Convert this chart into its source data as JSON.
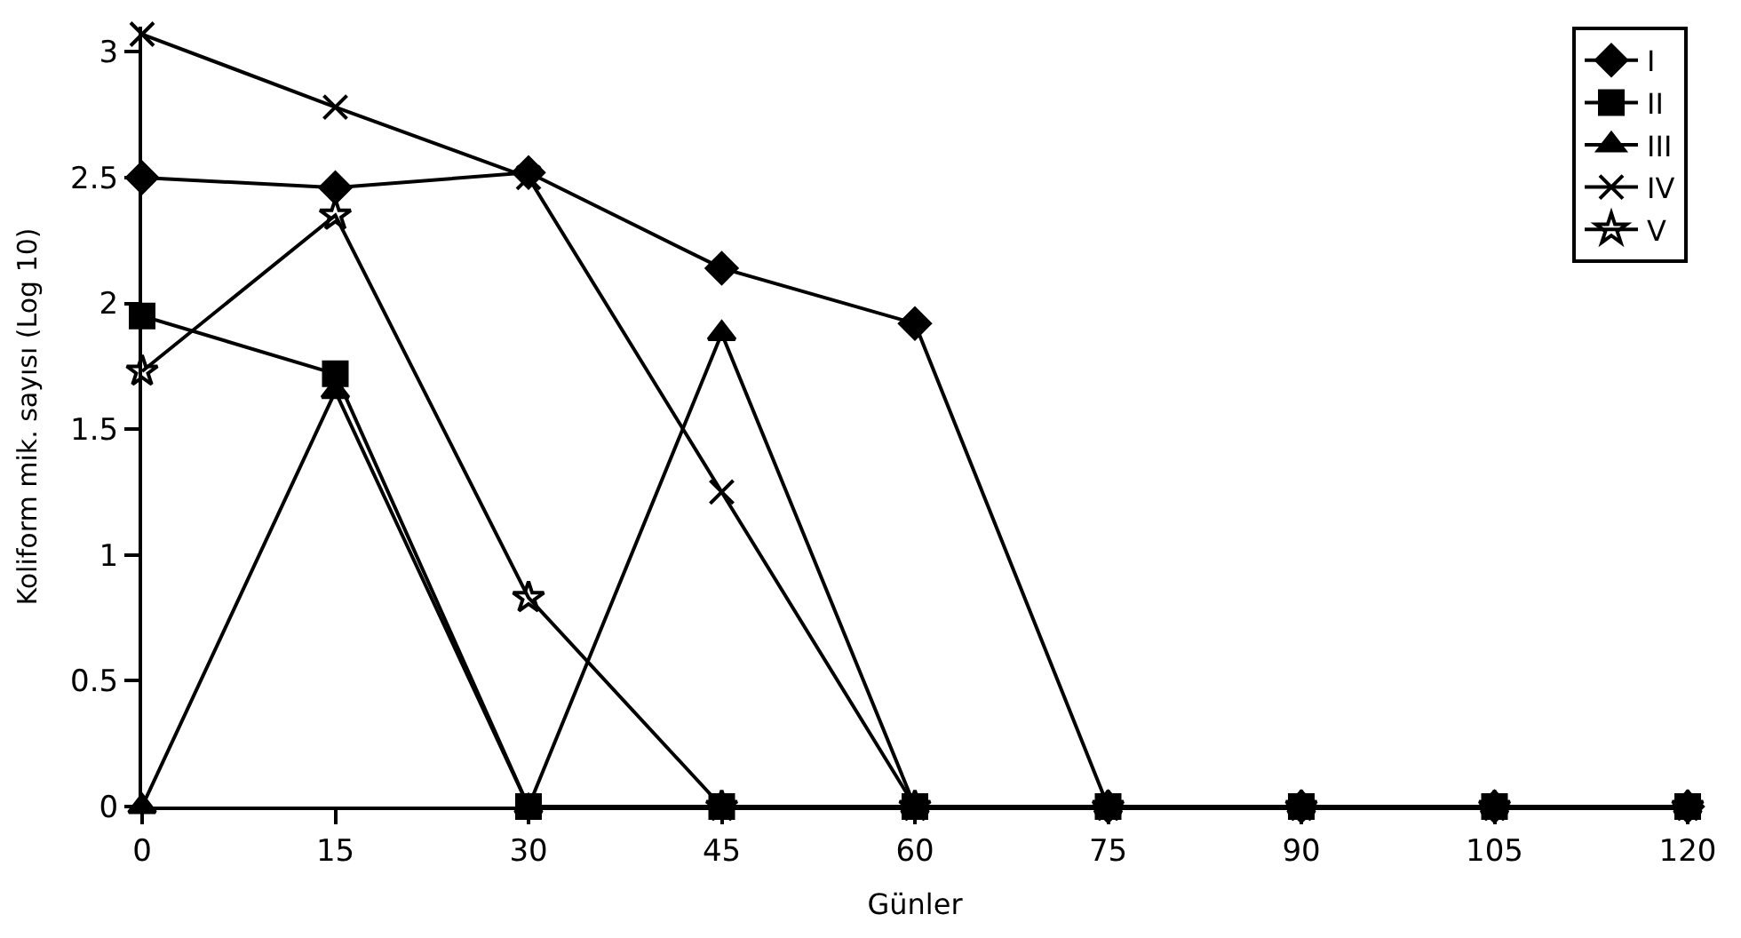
{
  "chart_data": {
    "type": "line",
    "xlabel": "Günler",
    "ylabel": "Koliform mik. sayısı (Log 10)",
    "x": [
      0,
      15,
      30,
      45,
      60,
      75,
      90,
      105,
      120
    ],
    "xlim": [
      0,
      120
    ],
    "xticks": [
      0,
      15,
      30,
      45,
      60,
      75,
      90,
      105,
      120
    ],
    "ylim": [
      0,
      3.1
    ],
    "yticks": [
      0,
      0.5,
      1,
      1.5,
      2,
      2.5,
      3
    ],
    "legend": "top right",
    "line_style": "solid",
    "series": [
      {
        "name": "I",
        "color": "#000000",
        "marker": "diamond",
        "values": [
          2.5,
          2.46,
          2.52,
          2.14,
          1.92,
          0,
          0,
          0,
          0
        ]
      },
      {
        "name": "II",
        "color": "#000000",
        "marker": "square",
        "values": [
          1.95,
          1.72,
          0,
          0,
          0,
          0,
          0,
          0,
          0
        ]
      },
      {
        "name": "III",
        "color": "#000000",
        "marker": "triangle",
        "values": [
          0,
          1.65,
          0,
          1.88,
          0,
          0,
          0,
          0,
          0
        ]
      },
      {
        "name": "IV",
        "color": "#000000",
        "marker": "cross",
        "values": [
          3.07,
          2.78,
          2.5,
          1.25,
          0,
          0,
          0,
          0,
          0
        ]
      },
      {
        "name": "V",
        "color": "#000000",
        "marker": "star",
        "values": [
          1.73,
          2.35,
          0.83,
          0,
          0,
          0,
          0,
          0,
          0
        ]
      }
    ]
  }
}
